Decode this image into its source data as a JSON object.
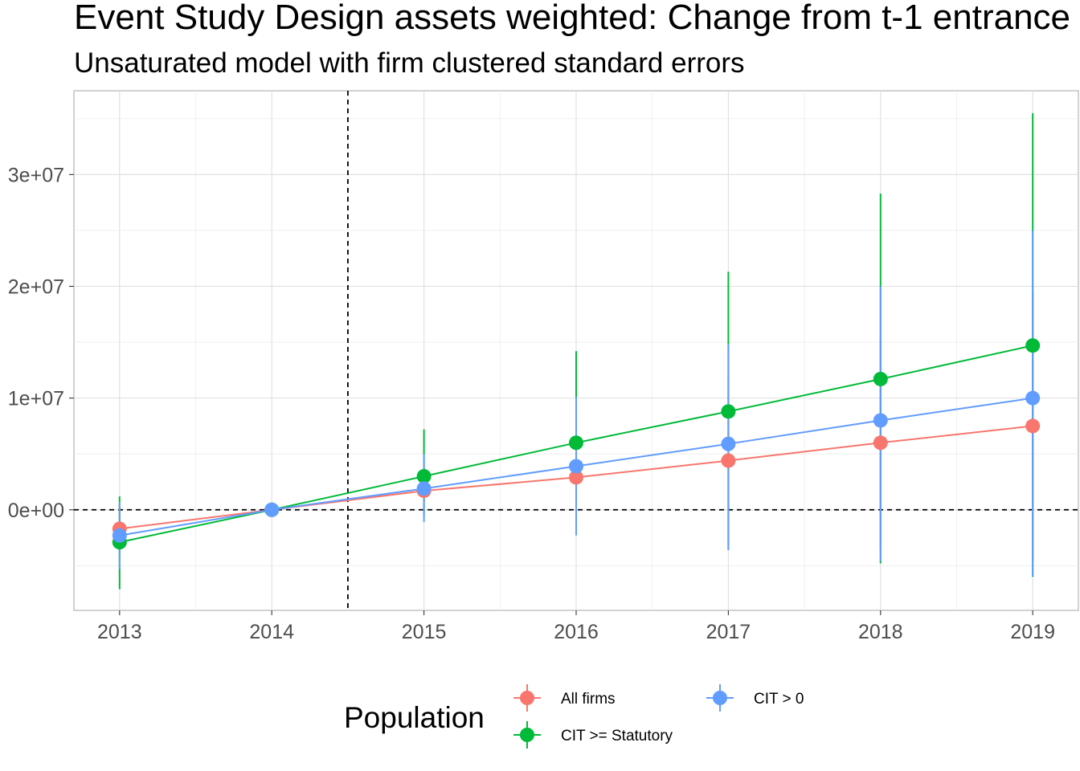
{
  "chart_data": {
    "type": "line",
    "title": "Event Study Design assets weighted: Change from t-1 entrance",
    "subtitle": "Unsaturated model with firm clustered standard errors",
    "xlabel": "",
    "ylabel": "",
    "x": [
      2013,
      2014,
      2015,
      2016,
      2017,
      2018,
      2019
    ],
    "xlim": [
      2012.7,
      2019.3
    ],
    "ylim": [
      -9000000,
      37500000
    ],
    "x_ticks": [
      "2013",
      "2014",
      "2015",
      "2016",
      "2017",
      "2018",
      "2019"
    ],
    "y_ticks": [
      {
        "value": 0,
        "label": "0e+00"
      },
      {
        "value": 10000000,
        "label": "1e+07"
      },
      {
        "value": 20000000,
        "label": "2e+07"
      },
      {
        "value": 30000000,
        "label": "3e+07"
      }
    ],
    "vline_x": 2014.5,
    "hline_y": 0,
    "grid": true,
    "legend": {
      "title": "Population",
      "position": "bottom"
    },
    "series": [
      {
        "name": "All firms",
        "color": "#F8766D",
        "values": [
          -1700000,
          0,
          1700000,
          2900000,
          4400000,
          6000000,
          7500000
        ],
        "ci_low": [
          -3800000,
          0,
          -300000,
          -1500000,
          -2900000,
          -3500000,
          -4500000
        ],
        "ci_high": [
          500000,
          0,
          3800000,
          7400000,
          12000000,
          15400000,
          19500000
        ]
      },
      {
        "name": "CIT >= Statutory",
        "color": "#00BA38",
        "values": [
          -2900000,
          0,
          3000000,
          6000000,
          8800000,
          11700000,
          14700000
        ],
        "ci_low": [
          -7100000,
          0,
          -600000,
          -2200000,
          -3600000,
          -4800000,
          -6000000
        ],
        "ci_high": [
          1200000,
          0,
          7200000,
          14200000,
          21300000,
          28300000,
          35500000
        ]
      },
      {
        "name": "CIT > 0",
        "color": "#619CFF",
        "values": [
          -2300000,
          0,
          1900000,
          3900000,
          5900000,
          8000000,
          10000000
        ],
        "ci_low": [
          -5300000,
          0,
          -1100000,
          -2300000,
          -3600000,
          -4600000,
          -5900000
        ],
        "ci_high": [
          700000,
          0,
          5000000,
          10100000,
          14800000,
          20000000,
          25000000
        ]
      }
    ]
  }
}
